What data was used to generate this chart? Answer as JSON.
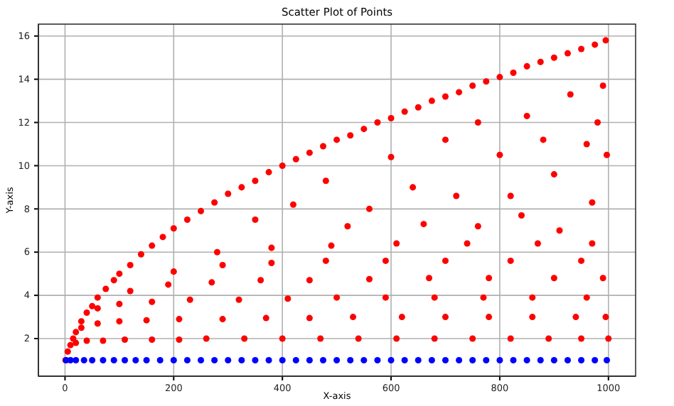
{
  "chart_data": {
    "type": "scatter",
    "title": "Scatter Plot of Points",
    "xlabel": "X-axis",
    "ylabel": "Y-axis",
    "xlim": [
      -49,
      1050
    ],
    "ylim": [
      0.26,
      16.55
    ],
    "xticks": [
      0,
      200,
      400,
      600,
      800,
      1000
    ],
    "yticks": [
      2,
      4,
      6,
      8,
      10,
      12,
      14,
      16
    ],
    "grid": true,
    "marker": "circle",
    "series": [
      {
        "color": "#ff0000",
        "x": [
          1,
          5,
          10,
          15,
          20,
          30,
          40,
          50,
          60,
          75,
          90,
          100,
          120,
          140,
          160,
          180,
          200,
          225,
          250,
          275,
          300,
          325,
          350,
          375,
          400,
          425,
          450,
          475,
          500,
          525,
          550,
          575,
          600,
          625,
          650,
          675,
          700,
          725,
          750,
          775,
          800,
          825,
          850,
          875,
          900,
          925,
          950,
          975,
          995,
          20,
          40,
          70,
          110,
          160,
          210,
          260,
          330,
          400,
          470,
          540,
          610,
          680,
          750,
          820,
          890,
          950,
          1000,
          30,
          60,
          100,
          150,
          210,
          290,
          370,
          450,
          530,
          620,
          700,
          780,
          860,
          940,
          995,
          60,
          100,
          160,
          230,
          320,
          410,
          500,
          590,
          680,
          770,
          860,
          960,
          120,
          190,
          270,
          360,
          450,
          560,
          670,
          780,
          900,
          990,
          200,
          290,
          380,
          480,
          590,
          700,
          820,
          950,
          280,
          380,
          490,
          610,
          740,
          870,
          970,
          350,
          420,
          480,
          520,
          560,
          600,
          640,
          660,
          700,
          720,
          760,
          800,
          820,
          850,
          880,
          900,
          930,
          960,
          980,
          997,
          990,
          970,
          910,
          840,
          760
        ],
        "values": [
          1,
          1.4,
          1.7,
          2.0,
          2.3,
          2.8,
          3.2,
          3.5,
          3.9,
          4.3,
          4.7,
          5.0,
          5.4,
          5.9,
          6.3,
          6.7,
          7.1,
          7.5,
          7.9,
          8.3,
          8.7,
          9.0,
          9.3,
          9.7,
          10.0,
          10.3,
          10.6,
          10.9,
          11.2,
          11.4,
          11.7,
          12.0,
          12.2,
          12.5,
          12.7,
          13.0,
          13.2,
          13.4,
          13.7,
          13.9,
          14.1,
          14.3,
          14.6,
          14.8,
          15.0,
          15.2,
          15.4,
          15.6,
          15.8,
          1.8,
          1.9,
          1.9,
          1.95,
          1.95,
          1.95,
          2.0,
          2.0,
          2.0,
          2.0,
          2.0,
          2.0,
          2.0,
          2.0,
          2.0,
          2.0,
          2.0,
          2.0,
          2.5,
          2.7,
          2.8,
          2.85,
          2.9,
          2.9,
          2.95,
          2.95,
          3.0,
          3.0,
          3.0,
          3.0,
          3.0,
          3.0,
          3.0,
          3.4,
          3.6,
          3.7,
          3.8,
          3.8,
          3.85,
          3.9,
          3.9,
          3.9,
          3.9,
          3.9,
          3.9,
          4.2,
          4.5,
          4.6,
          4.7,
          4.7,
          4.75,
          4.8,
          4.8,
          4.8,
          4.8,
          5.1,
          5.4,
          5.5,
          5.6,
          5.6,
          5.6,
          5.6,
          5.6,
          6.0,
          6.2,
          6.3,
          6.4,
          6.4,
          6.4,
          6.4,
          7.5,
          8.2,
          9.3,
          7.2,
          8.0,
          10.4,
          9.0,
          7.3,
          11.2,
          8.6,
          12.0,
          10.5,
          8.6,
          12.3,
          11.2,
          9.6,
          13.3,
          11.0,
          12.0,
          10.5,
          13.7,
          8.3,
          7.0,
          7.7,
          7.2
        ]
      },
      {
        "color": "#0000ff",
        "x": [
          2,
          10,
          20,
          35,
          50,
          70,
          90,
          110,
          130,
          150,
          175,
          200,
          225,
          250,
          275,
          300,
          325,
          350,
          375,
          400,
          425,
          450,
          475,
          500,
          525,
          550,
          575,
          600,
          625,
          650,
          675,
          700,
          725,
          750,
          775,
          800,
          825,
          850,
          875,
          900,
          925,
          950,
          975,
          997
        ],
        "values": [
          1,
          1,
          1,
          1,
          1,
          1,
          1,
          1,
          1,
          1,
          1,
          1,
          1,
          1,
          1,
          1,
          1,
          1,
          1,
          1,
          1,
          1,
          1,
          1,
          1,
          1,
          1,
          1,
          1,
          1,
          1,
          1,
          1,
          1,
          1,
          1,
          1,
          1,
          1,
          1,
          1,
          1,
          1,
          1
        ]
      }
    ]
  }
}
